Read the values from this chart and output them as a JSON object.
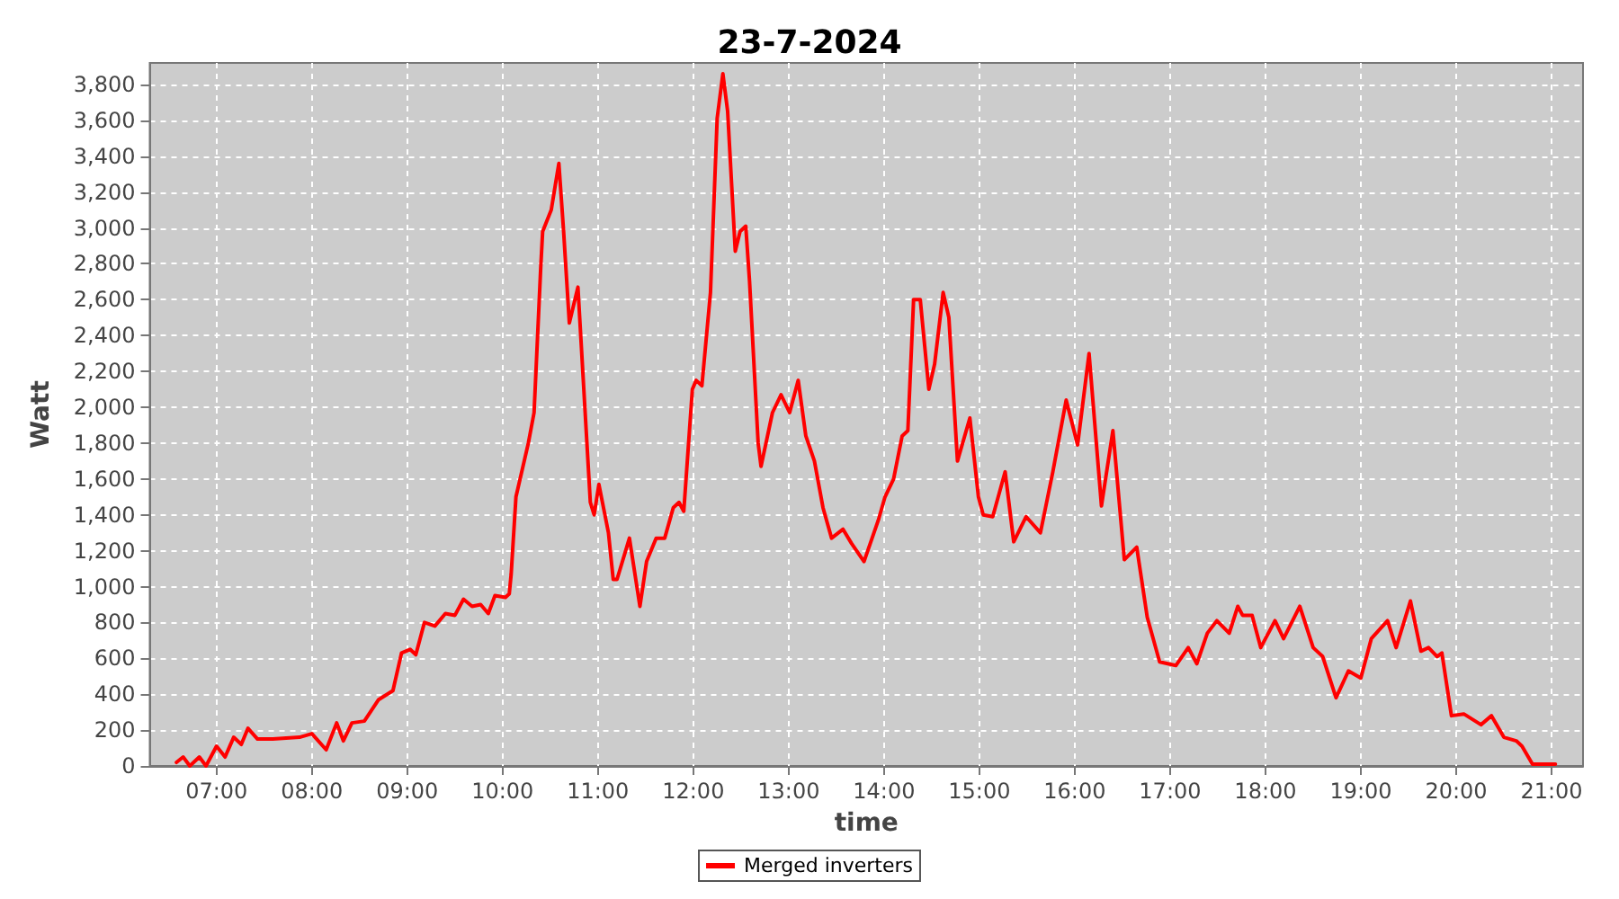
{
  "chart_data": {
    "type": "line",
    "title": "23-7-2024",
    "xlabel": "time",
    "ylabel": "Watt",
    "x": [
      6.58,
      6.65,
      6.72,
      6.82,
      6.89,
      7.0,
      7.09,
      7.18,
      7.26,
      7.33,
      7.43,
      7.59,
      7.87,
      8.0,
      8.15,
      8.26,
      8.33,
      8.42,
      8.55,
      8.7,
      8.85,
      8.94,
      9.03,
      9.09,
      9.18,
      9.29,
      9.4,
      9.5,
      9.59,
      9.68,
      9.77,
      9.85,
      9.92,
      10.03,
      10.07,
      10.09,
      10.14,
      10.27,
      10.33,
      10.4,
      10.42,
      10.51,
      10.59,
      10.64,
      10.7,
      10.79,
      10.92,
      10.96,
      11.01,
      11.11,
      11.16,
      11.2,
      11.33,
      11.44,
      11.51,
      11.61,
      11.7,
      11.79,
      11.85,
      11.9,
      11.99,
      12.03,
      12.09,
      12.18,
      12.25,
      12.31,
      12.36,
      12.44,
      12.49,
      12.55,
      12.59,
      12.68,
      12.71,
      12.83,
      12.92,
      13.01,
      13.1,
      13.18,
      13.27,
      13.36,
      13.45,
      13.57,
      13.66,
      13.79,
      13.94,
      14.01,
      14.1,
      14.19,
      14.25,
      14.31,
      14.38,
      14.47,
      14.53,
      14.62,
      14.68,
      14.77,
      14.9,
      14.99,
      15.04,
      15.14,
      15.27,
      15.36,
      15.49,
      15.64,
      15.77,
      15.91,
      16.03,
      16.15,
      16.28,
      16.4,
      16.52,
      16.65,
      16.76,
      16.89,
      17.06,
      17.19,
      17.28,
      17.39,
      17.49,
      17.62,
      17.71,
      17.76,
      17.86,
      17.95,
      18.1,
      18.19,
      18.36,
      18.5,
      18.6,
      18.74,
      18.87,
      19.0,
      19.11,
      19.28,
      19.37,
      19.52,
      19.63,
      19.71,
      19.8,
      19.85,
      19.95,
      20.08,
      20.26,
      20.37,
      20.5,
      20.63,
      20.69,
      20.8,
      21.04
    ],
    "series": [
      {
        "name": "Merged inverters",
        "color": "#ff0000",
        "values": [
          20,
          50,
          0,
          50,
          0,
          110,
          50,
          160,
          120,
          210,
          150,
          150,
          160,
          180,
          90,
          240,
          140,
          240,
          250,
          370,
          420,
          630,
          650,
          620,
          800,
          780,
          850,
          840,
          930,
          890,
          900,
          850,
          950,
          940,
          960,
          1070,
          1500,
          1800,
          1970,
          2780,
          2980,
          3100,
          3360,
          2980,
          2470,
          2670,
          1470,
          1400,
          1570,
          1300,
          1040,
          1040,
          1270,
          890,
          1140,
          1270,
          1270,
          1440,
          1470,
          1420,
          2100,
          2150,
          2120,
          2640,
          3610,
          3860,
          3650,
          2870,
          2980,
          3010,
          2700,
          1800,
          1670,
          1970,
          2070,
          1970,
          2150,
          1840,
          1700,
          1440,
          1270,
          1320,
          1240,
          1140,
          1370,
          1500,
          1600,
          1840,
          1870,
          2600,
          2600,
          2100,
          2240,
          2640,
          2500,
          1700,
          1940,
          1500,
          1400,
          1390,
          1640,
          1250,
          1390,
          1300,
          1640,
          2040,
          1790,
          2300,
          1450,
          1870,
          1150,
          1220,
          830,
          580,
          560,
          660,
          570,
          740,
          810,
          740,
          890,
          840,
          840,
          660,
          810,
          710,
          890,
          660,
          610,
          380,
          530,
          490,
          710,
          810,
          660,
          920,
          640,
          660,
          610,
          630,
          280,
          290,
          230,
          280,
          160,
          140,
          110,
          10,
          10
        ]
      }
    ],
    "xlim": [
      6.3,
      21.33
    ],
    "xticks": [
      {
        "value": 7,
        "label": "07:00"
      },
      {
        "value": 8,
        "label": "08:00"
      },
      {
        "value": 9,
        "label": "09:00"
      },
      {
        "value": 10,
        "label": "10:00"
      },
      {
        "value": 11,
        "label": "11:00"
      },
      {
        "value": 12,
        "label": "12:00"
      },
      {
        "value": 13,
        "label": "13:00"
      },
      {
        "value": 14,
        "label": "14:00"
      },
      {
        "value": 15,
        "label": "15:00"
      },
      {
        "value": 16,
        "label": "16:00"
      },
      {
        "value": 17,
        "label": "17:00"
      },
      {
        "value": 18,
        "label": "18:00"
      },
      {
        "value": 19,
        "label": "19:00"
      },
      {
        "value": 20,
        "label": "20:00"
      },
      {
        "value": 21,
        "label": "21:00"
      }
    ],
    "ylim": [
      0,
      3920
    ],
    "yticks": [
      0,
      200,
      400,
      600,
      800,
      {
        "value": 1000,
        "label": "1,000"
      },
      {
        "value": 1200,
        "label": "1,200"
      },
      {
        "value": 1400,
        "label": "1,400"
      },
      {
        "value": 1600,
        "label": "1,600"
      },
      {
        "value": 1800,
        "label": "1,800"
      },
      {
        "value": 2000,
        "label": "2,000"
      },
      {
        "value": 2200,
        "label": "2,200"
      },
      {
        "value": 2400,
        "label": "2,400"
      },
      {
        "value": 2600,
        "label": "2,600"
      },
      {
        "value": 2800,
        "label": "2,800"
      },
      {
        "value": 3000,
        "label": "3,000"
      },
      {
        "value": 3200,
        "label": "3,200"
      },
      {
        "value": 3400,
        "label": "3,400"
      },
      {
        "value": 3600,
        "label": "3,600"
      },
      {
        "value": 3800,
        "label": "3,800"
      }
    ],
    "grid": true,
    "legend": "bottom",
    "marker": "none",
    "line_style": "solid"
  }
}
